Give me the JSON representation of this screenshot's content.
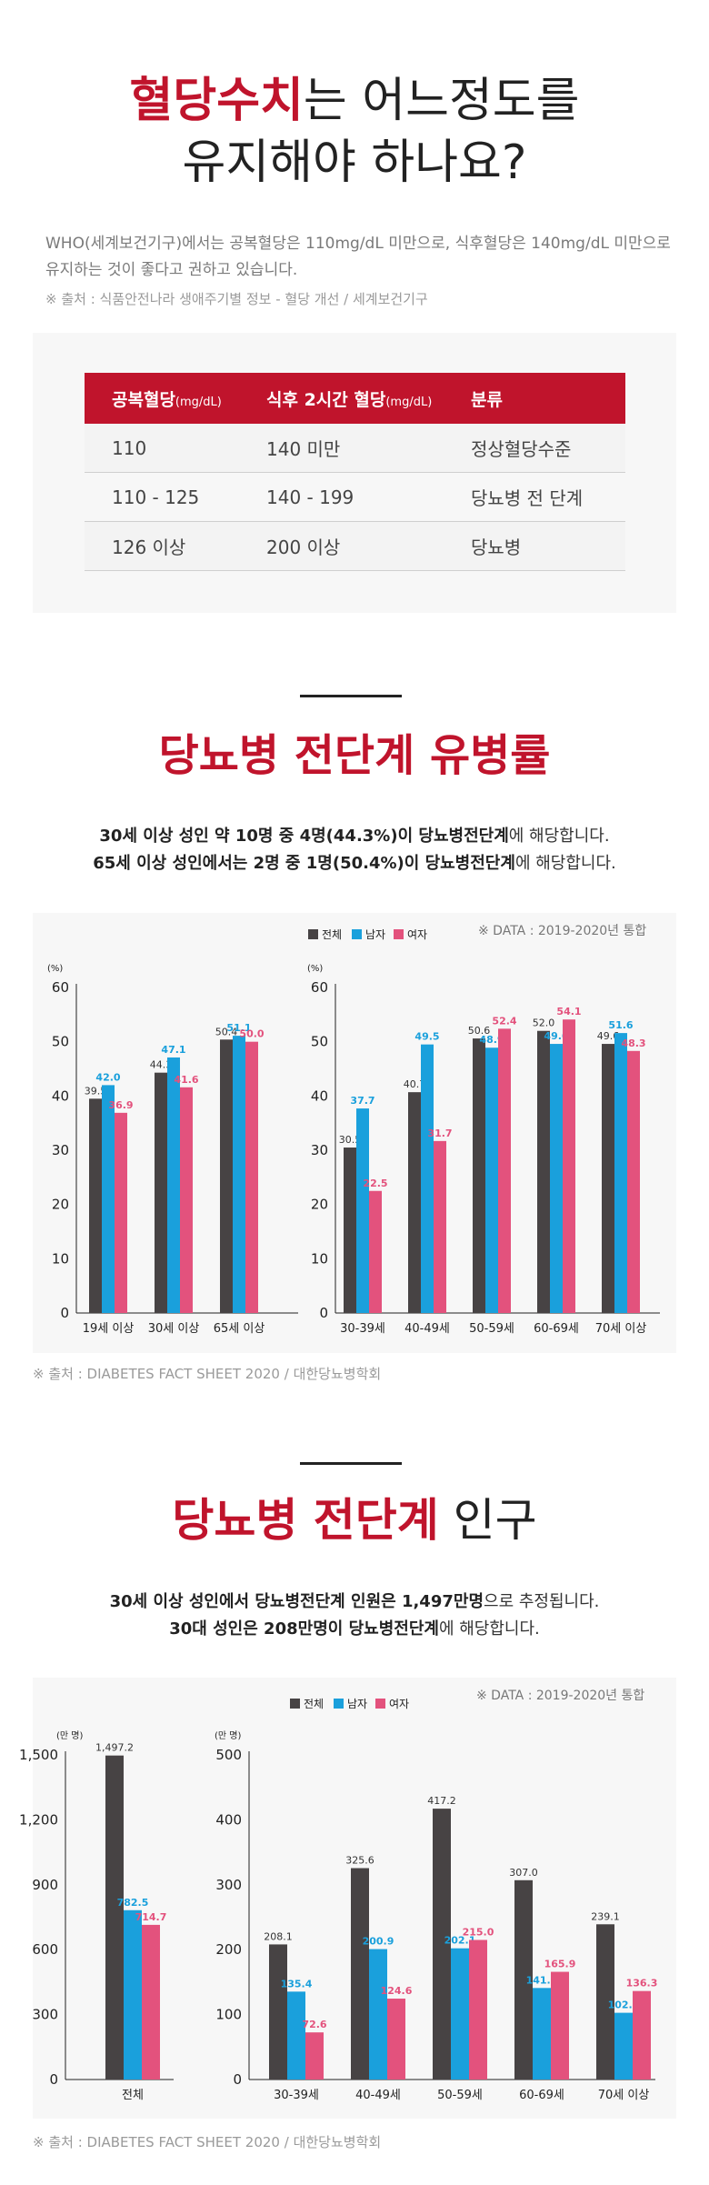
{
  "colors": {
    "total": "#474344",
    "male": "#1aa0dc",
    "female": "#e3527d",
    "accent": "#c0142c"
  },
  "section1": {
    "title_red": "혈당수치",
    "title_rest": "는 어느정도를",
    "title_line2": "유지해야 하나요?",
    "desc": "WHO(세계보건기구)에서는 공복혈당은 110mg/dL 미만으로, 식후혈당은 140mg/dL 미만으로 유지하는 것이 좋다고 권하고 있습니다.",
    "source": "※ 출처 : 식품안전나라 생애주기별 정보 - 혈당 개선 / 세계보건기구",
    "table": {
      "headers": [
        {
          "label": "공복혈당",
          "unit": "(mg/dL)"
        },
        {
          "label": "식후 2시간 혈당",
          "unit": "(mg/dL)"
        },
        {
          "label": "분류",
          "unit": ""
        }
      ],
      "rows": [
        [
          "110",
          "140 미만",
          "정상혈당수준"
        ],
        [
          "110 - 125",
          "140 - 199",
          "당뇨병 전 단계"
        ],
        [
          "126 이상",
          "200 이상",
          "당뇨병"
        ]
      ]
    }
  },
  "section2": {
    "title": "당뇨병 전단계 유병률",
    "sub1_bold": "30세 이상 성인 약 10명 중 4명(44.3%)이 당뇨병전단계",
    "sub1_rest": "에 해당합니다.",
    "sub2_bold": "65세 이상 성인에서는 2명 중 1명(50.4%)이 당뇨병전단계",
    "sub2_rest": "에 해당합니다.",
    "data_note": "※ DATA : 2019-2020년 통합",
    "source": "※ 출처 : DIABETES FACT SHEET 2020 / 대한당뇨병학회"
  },
  "section3": {
    "title_red": "당뇨병 전단계",
    "title_rest": " 인구",
    "sub1_bold": "30세 이상 성인에서 당뇨병전단계 인원은 1,497만명",
    "sub1_rest": "으로 추정됩니다.",
    "sub2_bold": "30대 성인은 208만명이 당뇨병전단계",
    "sub2_rest": "에 해당합니다.",
    "data_note": "※ DATA : 2019-2020년 통합",
    "source": "※ 출처 : DIABETES FACT SHEET 2020 / 대한당뇨병학회"
  },
  "legend": [
    "전체",
    "남자",
    "여자"
  ],
  "chart_data": [
    {
      "type": "bar",
      "ylabel": "(%)",
      "ylim": [
        0,
        60
      ],
      "yticks": [
        0,
        10,
        20,
        30,
        40,
        50,
        60
      ],
      "categories": [
        "19세 이상",
        "30세 이상",
        "65세 이상"
      ],
      "series": [
        {
          "name": "전체",
          "values": [
            39.5,
            44.3,
            50.4
          ]
        },
        {
          "name": "남자",
          "values": [
            42.0,
            47.1,
            51.1
          ]
        },
        {
          "name": "여자",
          "values": [
            36.9,
            41.6,
            50.0
          ]
        }
      ]
    },
    {
      "type": "bar",
      "ylabel": "(%)",
      "ylim": [
        0,
        60
      ],
      "yticks": [
        0,
        10,
        20,
        30,
        40,
        50,
        60
      ],
      "categories": [
        "30-39세",
        "40-49세",
        "50-59세",
        "60-69세",
        "70세 이상"
      ],
      "series": [
        {
          "name": "전체",
          "values": [
            30.5,
            40.7,
            50.6,
            52.0,
            49.6
          ]
        },
        {
          "name": "남자",
          "values": [
            37.7,
            49.5,
            48.9,
            49.6,
            51.6
          ]
        },
        {
          "name": "여자",
          "values": [
            22.5,
            31.7,
            52.4,
            54.1,
            48.3
          ]
        }
      ]
    },
    {
      "type": "bar",
      "ylabel": "(만 명)",
      "ylim": [
        0,
        1500
      ],
      "yticks": [
        0,
        300,
        600,
        900,
        1200,
        1500
      ],
      "categories": [
        "전체"
      ],
      "series": [
        {
          "name": "전체",
          "values": [
            1497.2
          ]
        },
        {
          "name": "남자",
          "values": [
            782.5
          ]
        },
        {
          "name": "여자",
          "values": [
            714.7
          ]
        }
      ]
    },
    {
      "type": "bar",
      "ylabel": "(만 명)",
      "ylim": [
        0,
        500
      ],
      "yticks": [
        0,
        100,
        200,
        300,
        400,
        500
      ],
      "categories": [
        "30-39세",
        "40-49세",
        "50-59세",
        "60-69세",
        "70세 이상"
      ],
      "series": [
        {
          "name": "전체",
          "values": [
            208.1,
            325.6,
            417.2,
            307.0,
            239.1
          ]
        },
        {
          "name": "남자",
          "values": [
            135.4,
            200.9,
            202.1,
            141.0,
            102.8
          ]
        },
        {
          "name": "여자",
          "values": [
            72.6,
            124.6,
            215.0,
            165.9,
            136.3
          ]
        }
      ]
    }
  ]
}
